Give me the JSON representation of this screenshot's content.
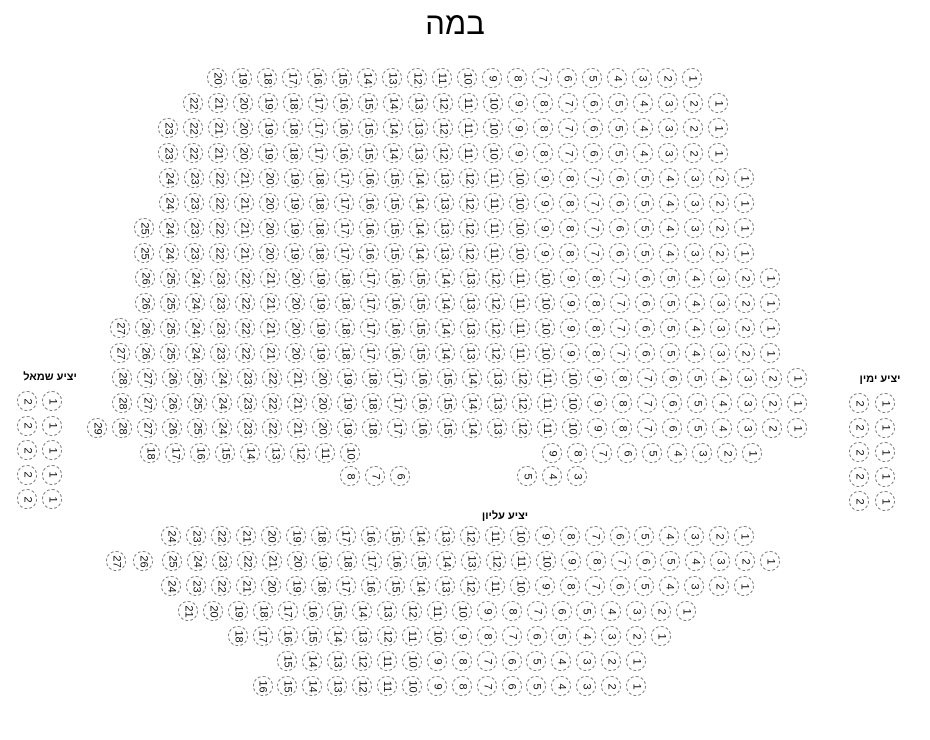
{
  "stage": {
    "label": "במה"
  },
  "main_hall": {
    "rows": [
      [
        1,
        2,
        3,
        4,
        5,
        6,
        7,
        8,
        9,
        10,
        11,
        12,
        13,
        14,
        15,
        16,
        17,
        18,
        19,
        20
      ],
      [
        1,
        2,
        3,
        4,
        5,
        6,
        7,
        8,
        9,
        10,
        11,
        12,
        13,
        14,
        15,
        16,
        17,
        18,
        19,
        20,
        21,
        22
      ],
      [
        1,
        2,
        3,
        4,
        5,
        6,
        7,
        8,
        9,
        10,
        11,
        12,
        13,
        14,
        15,
        16,
        17,
        18,
        19,
        20,
        21,
        22,
        23
      ],
      [
        1,
        2,
        3,
        4,
        5,
        6,
        7,
        8,
        9,
        10,
        11,
        12,
        13,
        14,
        15,
        16,
        17,
        18,
        19,
        20,
        21,
        22,
        23
      ],
      [
        1,
        2,
        3,
        4,
        5,
        6,
        7,
        8,
        9,
        10,
        11,
        12,
        13,
        14,
        15,
        16,
        17,
        18,
        19,
        20,
        21,
        22,
        23,
        24
      ],
      [
        1,
        2,
        3,
        4,
        5,
        6,
        7,
        8,
        9,
        10,
        11,
        12,
        13,
        14,
        15,
        16,
        17,
        18,
        19,
        20,
        21,
        22,
        23,
        24
      ],
      [
        1,
        2,
        3,
        4,
        5,
        6,
        7,
        8,
        9,
        10,
        11,
        12,
        13,
        14,
        15,
        16,
        17,
        18,
        19,
        20,
        21,
        22,
        23,
        24,
        25
      ],
      [
        1,
        2,
        3,
        4,
        5,
        6,
        7,
        8,
        9,
        10,
        11,
        12,
        13,
        14,
        15,
        16,
        17,
        18,
        19,
        20,
        21,
        22,
        23,
        24,
        25
      ],
      [
        1,
        2,
        3,
        4,
        5,
        6,
        7,
        8,
        9,
        10,
        11,
        12,
        13,
        14,
        15,
        16,
        17,
        18,
        19,
        20,
        21,
        22,
        23,
        24,
        25,
        26
      ],
      [
        1,
        2,
        3,
        4,
        5,
        6,
        7,
        8,
        9,
        10,
        11,
        12,
        13,
        14,
        15,
        16,
        17,
        18,
        19,
        20,
        21,
        22,
        23,
        24,
        25,
        26
      ],
      [
        1,
        2,
        3,
        4,
        5,
        6,
        7,
        8,
        9,
        10,
        11,
        12,
        13,
        14,
        15,
        16,
        17,
        18,
        19,
        20,
        21,
        22,
        23,
        24,
        25,
        26,
        27
      ],
      [
        1,
        2,
        3,
        4,
        5,
        6,
        7,
        8,
        9,
        10,
        11,
        12,
        13,
        14,
        15,
        16,
        17,
        18,
        19,
        20,
        21,
        22,
        23,
        24,
        25,
        26,
        27
      ],
      [
        1,
        2,
        3,
        4,
        5,
        6,
        7,
        8,
        9,
        10,
        11,
        12,
        13,
        14,
        15,
        16,
        17,
        18,
        19,
        20,
        21,
        22,
        23,
        24,
        25,
        26,
        27,
        28
      ],
      [
        1,
        2,
        3,
        4,
        5,
        6,
        7,
        8,
        9,
        10,
        11,
        12,
        13,
        14,
        15,
        16,
        17,
        18,
        19,
        20,
        21,
        22,
        23,
        24,
        25,
        26,
        27,
        28
      ],
      [
        1,
        2,
        3,
        4,
        5,
        6,
        7,
        8,
        9,
        10,
        11,
        12,
        13,
        14,
        15,
        16,
        17,
        18,
        19,
        20,
        21,
        22,
        23,
        24,
        25,
        26,
        27,
        28,
        29
      ],
      [
        1,
        2,
        3,
        4,
        5,
        6,
        7,
        8,
        9,
        10,
        11,
        12,
        13,
        14,
        15,
        16,
        17,
        18
      ],
      [
        3,
        4,
        5,
        6,
        7,
        8
      ]
    ]
  },
  "left_balcony": {
    "label": "יציע שמאל",
    "rows": [
      [
        1,
        2
      ],
      [
        1,
        2
      ],
      [
        1,
        2
      ],
      [
        1,
        2
      ],
      [
        1,
        2
      ]
    ]
  },
  "right_balcony": {
    "label": "יציע ימין",
    "rows": [
      [
        1,
        2
      ],
      [
        1,
        2
      ],
      [
        1,
        2
      ],
      [
        1,
        2
      ],
      [
        1,
        2
      ]
    ]
  },
  "upper_balcony": {
    "label": "יציע עליון",
    "rows": [
      [
        1,
        2,
        3,
        4,
        5,
        6,
        7,
        8,
        9,
        10,
        11,
        12,
        13,
        14,
        15,
        16,
        17,
        18,
        19,
        20,
        21,
        22,
        23,
        24
      ],
      [
        1,
        2,
        3,
        4,
        5,
        6,
        7,
        8,
        9,
        10,
        11,
        12,
        13,
        14,
        15,
        16,
        17,
        18,
        19,
        20,
        21,
        22,
        23,
        24,
        25,
        26,
        27
      ],
      [
        1,
        2,
        3,
        4,
        5,
        6,
        7,
        8,
        9,
        10,
        11,
        12,
        13,
        14,
        15,
        16,
        17,
        18,
        19,
        20,
        21,
        22,
        23,
        24
      ],
      [
        1,
        2,
        3,
        4,
        5,
        6,
        7,
        8,
        9,
        10,
        11,
        12,
        13,
        14,
        15,
        16,
        17,
        18,
        19,
        20,
        21
      ],
      [
        1,
        2,
        3,
        4,
        5,
        6,
        7,
        8,
        9,
        10,
        11,
        12,
        13,
        14,
        15,
        16,
        17,
        18
      ],
      [
        1,
        2,
        3,
        4,
        5,
        6,
        7,
        8,
        9,
        10,
        11,
        12,
        13,
        14,
        15
      ],
      [
        1,
        2,
        3,
        4,
        5,
        6,
        7,
        8,
        9,
        10,
        11,
        12,
        13,
        14,
        15,
        16
      ]
    ]
  }
}
